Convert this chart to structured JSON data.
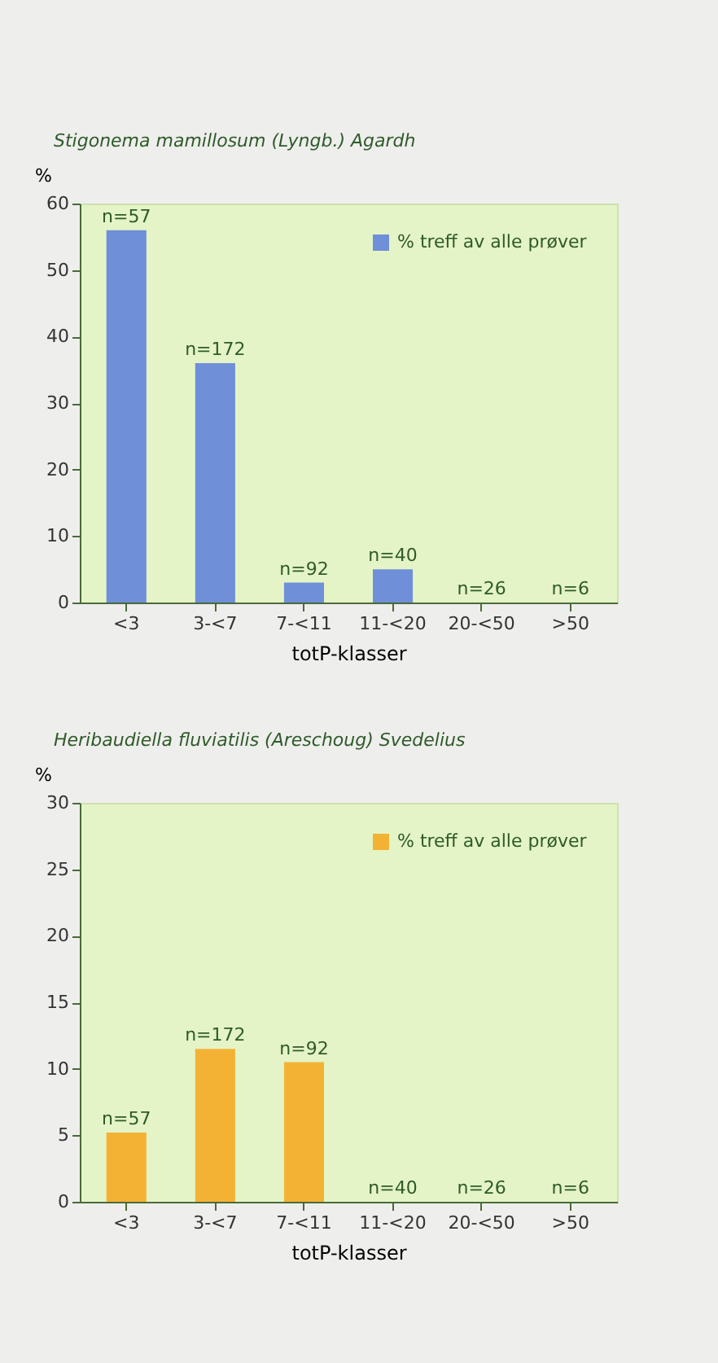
{
  "chart_data": [
    {
      "type": "bar",
      "title": "Stigonema mamillosum (Lyngb.) Agardh",
      "ylabel": "%",
      "xlabel": "totP-klasser",
      "categories": [
        "<3",
        "3-<7",
        "7-<11",
        "11-<20",
        "20-<50",
        ">50"
      ],
      "series": [
        {
          "name": "% treff av alle prøver",
          "color": "#6f8fd8",
          "values": [
            56,
            36,
            3,
            5,
            0,
            0
          ]
        }
      ],
      "annotations": [
        {
          "text": "n=57",
          "x": "<3",
          "y": 56
        },
        {
          "text": "n=172",
          "x": "3-<7",
          "y": 36
        },
        {
          "text": "n=92",
          "x": "7-<11",
          "y": 3
        },
        {
          "text": "n=40",
          "x": "11-<20",
          "y": 5
        },
        {
          "text": "n=26",
          "x": "20-<50",
          "y": 0
        },
        {
          "text": "n=6",
          "x": ">50",
          "y": 0
        }
      ],
      "ylim": [
        0,
        60
      ],
      "yticks": [
        0,
        10,
        20,
        30,
        40,
        50,
        60
      ],
      "legend": "top right"
    },
    {
      "type": "bar",
      "title": "Heribaudiella fluviatilis (Areschoug) Svedelius",
      "ylabel": "%",
      "xlabel": "totP-klasser",
      "categories": [
        "<3",
        "3-<7",
        "7-<11",
        "11-<20",
        "20-<50",
        ">50"
      ],
      "series": [
        {
          "name": "% treff av alle prøver",
          "color": "#f4b234",
          "values": [
            5.2,
            11.5,
            10.5,
            0,
            0,
            0
          ]
        }
      ],
      "annotations": [
        {
          "text": "n=57",
          "x": "<3",
          "y": 5.2
        },
        {
          "text": "n=172",
          "x": "3-<7",
          "y": 11.5
        },
        {
          "text": "n=92",
          "x": "7-<11",
          "y": 10.5
        },
        {
          "text": "n=40",
          "x": "11-<20",
          "y": 0
        },
        {
          "text": "n=26",
          "x": "20-<50",
          "y": 0
        },
        {
          "text": "n=6",
          "x": ">50",
          "y": 0
        }
      ],
      "ylim": [
        0,
        30
      ],
      "yticks": [
        0,
        5,
        10,
        15,
        20,
        25,
        30
      ],
      "legend": "top right"
    }
  ]
}
